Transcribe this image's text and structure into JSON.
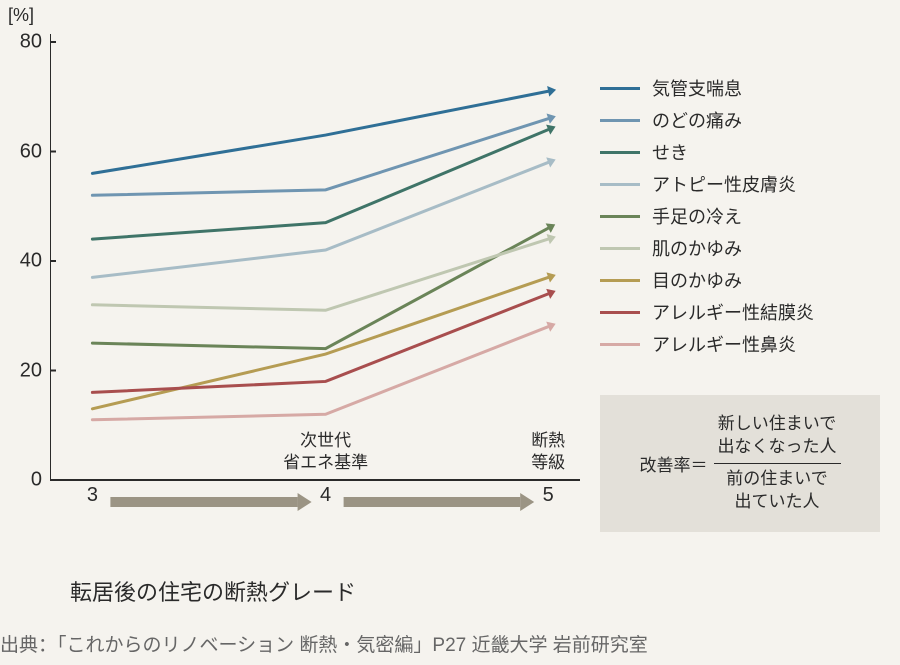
{
  "chart": {
    "type": "line",
    "y_axis_unit": "[%]",
    "ylim": [
      0,
      80
    ],
    "yticks": [
      0,
      20,
      40,
      60,
      80
    ],
    "x_categories": [
      "3",
      "4",
      "5"
    ],
    "x_positions": [
      0.08,
      0.52,
      0.94
    ],
    "x_annotations": [
      {
        "text_lines": [
          "次世代",
          "省エネ基準"
        ],
        "x": 0.52
      },
      {
        "text_lines": [
          "断熱",
          "等級"
        ],
        "x": 0.94
      }
    ],
    "x_title": "転居後の住宅の断熱グレード",
    "axis_color": "#2a2a2a",
    "line_width": 3,
    "arrow_size": 9,
    "background_color": "#f5f3ee",
    "series": [
      {
        "label": "気管支喘息",
        "color": "#2f6f96",
        "values": [
          56,
          63,
          71
        ]
      },
      {
        "label": "のどの痛み",
        "color": "#6f95b1",
        "values": [
          52,
          53,
          66
        ]
      },
      {
        "label": "せき",
        "color": "#3f7468",
        "values": [
          44,
          47,
          64
        ]
      },
      {
        "label": "アトピー性皮膚炎",
        "color": "#a7bcc6",
        "values": [
          37,
          42,
          58
        ]
      },
      {
        "label": "手足の冷え",
        "color": "#6a8458",
        "values": [
          25,
          24,
          46
        ]
      },
      {
        "label": "肌のかゆみ",
        "color": "#bfc7b1",
        "values": [
          32,
          31,
          44
        ]
      },
      {
        "label": "目のかゆみ",
        "color": "#b59c53",
        "values": [
          13,
          23,
          37
        ]
      },
      {
        "label": "アレルギー性結膜炎",
        "color": "#a84e4e",
        "values": [
          16,
          18,
          34
        ]
      },
      {
        "label": "アレルギー性鼻炎",
        "color": "#d6a9a5",
        "values": [
          11,
          12,
          28
        ]
      }
    ],
    "x_range_arrows_color": "#9b9484"
  },
  "formula": {
    "lhs": "改善率＝",
    "numerator_lines": [
      "新しい住まいで",
      "出なくなった人"
    ],
    "denominator_lines": [
      "前の住まいで",
      "出ていた人"
    ]
  },
  "source": "出典：「これからのリノベーション 断熱・気密編」P27 近畿大学 岩前研究室"
}
